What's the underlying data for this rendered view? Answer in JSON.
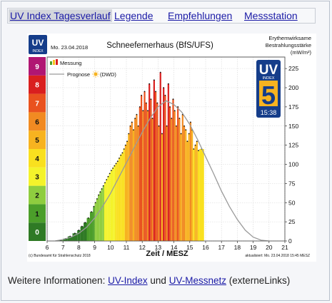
{
  "tabs": [
    {
      "label": "UV Index Tagesverlauf",
      "active": true
    },
    {
      "label": "Legende",
      "active": false
    },
    {
      "label": "Empfehlungen",
      "active": false
    },
    {
      "label": "Messstation",
      "active": false
    }
  ],
  "footer": {
    "prefix": "Weitere Informationen:",
    "link1": "UV-Index",
    "middle": "und",
    "link2": "UV-Messnetz",
    "suffix": "(externeLinks)"
  },
  "chart_data": {
    "type": "bar",
    "title": "Schneefernerhaus (BfS/UFS)",
    "date": "Mo. 23.04.2018",
    "logo_text": {
      "uv": "UV",
      "index": "INDEX"
    },
    "right_axis_title": [
      "Erythemwirksame",
      "Bestrahlungsstärke",
      "(mW/m²)"
    ],
    "xlabel": "Zeit / MESZ",
    "xlim": [
      6,
      21
    ],
    "ylim": [
      0,
      240
    ],
    "x_ticks": [
      "6",
      "7",
      "8",
      "9",
      "10",
      "11",
      "12",
      "13",
      "14",
      "15",
      "16",
      "17",
      "18",
      "19",
      "20",
      "21"
    ],
    "y_ticks": [
      "0",
      "25",
      "50",
      "75",
      "100",
      "125",
      "150",
      "175",
      "200",
      "225"
    ],
    "uv_index_scale": [
      "0",
      "1",
      "2",
      "3",
      "4",
      "5",
      "6",
      "7",
      "8",
      "9"
    ],
    "uv_index_colors": [
      "#2f7a25",
      "#4b9e2a",
      "#8fcd3f",
      "#f4f32b",
      "#f9e01f",
      "#f7b320",
      "#f18a22",
      "#e9521f",
      "#d91f1f",
      "#b01673"
    ],
    "legend": {
      "measurement": "Messung",
      "forecast": "Prognose",
      "forecast_source": "(DWD)",
      "position": "top-left"
    },
    "current": {
      "uv_label": "UV",
      "index_label": "INDEX",
      "value": "5",
      "time": "15:38"
    },
    "credit": "(c) Bundesamt für Strahlenschutz 2018",
    "updated": "aktualisiert: Mo. 23.04.2018  15:45  MESZ",
    "measurement": {
      "x": [
        6.7,
        7.0,
        7.3,
        7.6,
        7.9,
        8.1,
        8.3,
        8.5,
        8.7,
        8.9,
        9.0,
        9.1,
        9.2,
        9.3,
        9.4,
        9.5,
        9.6,
        9.7,
        9.8,
        9.9,
        10.0,
        10.1,
        10.2,
        10.3,
        10.4,
        10.5,
        10.6,
        10.7,
        10.8,
        10.9,
        11.0,
        11.1,
        11.2,
        11.3,
        11.4,
        11.5,
        11.6,
        11.7,
        11.8,
        11.9,
        12.0,
        12.1,
        12.2,
        12.3,
        12.4,
        12.5,
        12.6,
        12.7,
        12.8,
        12.9,
        13.0,
        13.1,
        13.2,
        13.3,
        13.4,
        13.5,
        13.6,
        13.7,
        13.8,
        13.9,
        14.0,
        14.1,
        14.2,
        14.3,
        14.4,
        14.5,
        14.6,
        14.7,
        14.8,
        14.9,
        15.0,
        15.1,
        15.2,
        15.3,
        15.4,
        15.5,
        15.6
      ],
      "y": [
        1,
        3,
        6,
        10,
        14,
        19,
        24,
        30,
        38,
        45,
        50,
        55,
        60,
        64,
        68,
        72,
        76,
        80,
        84,
        88,
        92,
        95,
        98,
        101,
        104,
        108,
        112,
        115,
        120,
        125,
        130,
        140,
        150,
        155,
        145,
        160,
        165,
        150,
        175,
        190,
        170,
        195,
        180,
        170,
        205,
        185,
        160,
        210,
        195,
        180,
        150,
        220,
        140,
        200,
        190,
        150,
        205,
        175,
        160,
        185,
        170,
        150,
        175,
        160,
        140,
        165,
        150,
        145,
        130,
        140,
        155,
        145,
        120,
        125,
        130,
        118,
        120
      ]
    },
    "forecast": {
      "x": [
        6.5,
        7,
        7.5,
        8,
        8.5,
        9,
        9.5,
        10,
        10.5,
        11,
        11.5,
        12,
        12.5,
        13,
        13.5,
        14,
        14.5,
        15,
        15.5,
        16,
        16.5,
        17,
        17.5,
        18,
        18.5,
        19,
        19.5,
        20
      ],
      "y": [
        0,
        2,
        5,
        10,
        18,
        30,
        45,
        62,
        82,
        102,
        122,
        142,
        160,
        175,
        183,
        178,
        168,
        152,
        132,
        110,
        88,
        65,
        45,
        28,
        14,
        5,
        1,
        0
      ]
    }
  }
}
